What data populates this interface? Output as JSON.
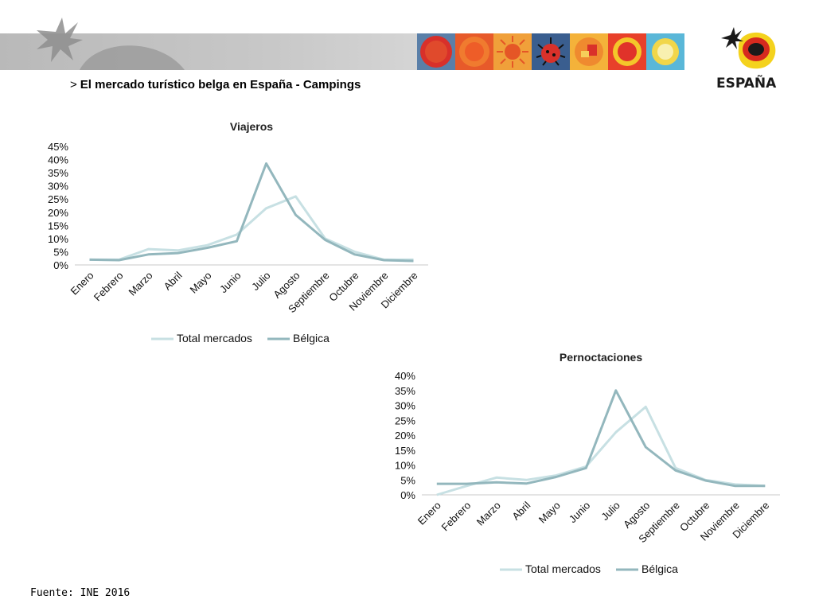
{
  "header": {
    "marker": ">",
    "title": "El mercado turístico belga en España - Campings"
  },
  "logo": {
    "wordmark": "ESPAÑA"
  },
  "footer": {
    "source": "Fuente: INE 2016"
  },
  "colors": {
    "total": "#c7e0e3",
    "belgica": "#93b7bd",
    "axis": "#c8c8c8",
    "logo_red": "#d62a1f",
    "logo_yellow": "#f4d21d"
  },
  "chart_data": [
    {
      "type": "line",
      "title": "Viajeros",
      "categories": [
        "Enero",
        "Febrero",
        "Marzo",
        "Abril",
        "Mayo",
        "Junio",
        "Julio",
        "Agosto",
        "Septiembre",
        "Octubre",
        "Noviembre",
        "Diciembre"
      ],
      "yticks": [
        "0%",
        "5%",
        "10%",
        "15%",
        "20%",
        "25%",
        "30%",
        "35%",
        "40%",
        "45%"
      ],
      "ylim": [
        0,
        45
      ],
      "legend_position": "bottom",
      "series": [
        {
          "name": "Total mercados",
          "values": [
            2,
            2,
            6,
            5.5,
            7.5,
            11.5,
            21.5,
            26,
            10,
            5,
            2,
            2
          ]
        },
        {
          "name": "Bélgica",
          "values": [
            2,
            1.8,
            4,
            4.5,
            6.5,
            9,
            38.5,
            19,
            9.5,
            4,
            1.8,
            1.5
          ]
        }
      ]
    },
    {
      "type": "line",
      "title": "Pernoctaciones",
      "categories": [
        "Enero",
        "Febrero",
        "Marzo",
        "Abril",
        "Mayo",
        "Junio",
        "Julio",
        "Agosto",
        "Septiembre",
        "Octubre",
        "Noviembre",
        "Diciembre"
      ],
      "yticks": [
        "0%",
        "5%",
        "10%",
        "15%",
        "20%",
        "25%",
        "30%",
        "35%",
        "40%"
      ],
      "ylim": [
        0,
        40
      ],
      "legend_position": "bottom",
      "series": [
        {
          "name": "Total mercados",
          "values": [
            0,
            3,
            5.8,
            5,
            6.5,
            9.5,
            21,
            29.5,
            9,
            5,
            3.5,
            3
          ]
        },
        {
          "name": "Bélgica",
          "values": [
            3.7,
            3.7,
            4.2,
            3.8,
            6,
            9,
            35,
            16,
            8.2,
            4.8,
            3,
            3
          ]
        }
      ]
    }
  ]
}
